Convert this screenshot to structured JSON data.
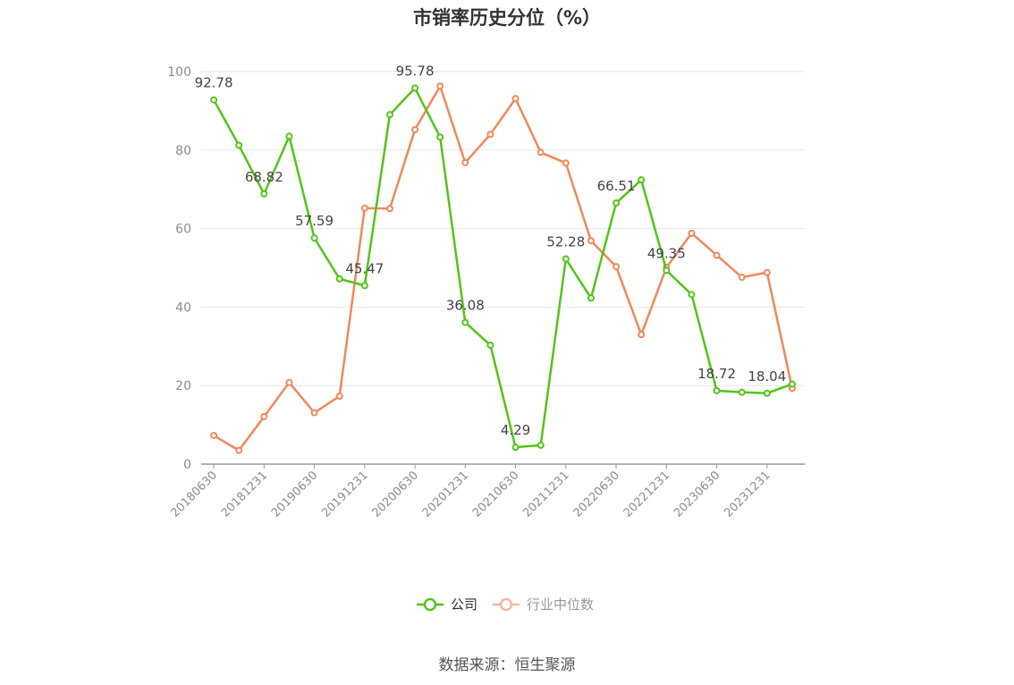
{
  "chart_data": {
    "type": "line",
    "title": "市销率历史分位（%）",
    "source": "数据来源：恒生聚源",
    "ylim": [
      0,
      100
    ],
    "yticks": [
      0,
      20,
      40,
      60,
      80,
      100
    ],
    "x": [
      "20180630",
      "20180930",
      "20181231",
      "20190331",
      "20190630",
      "20190930",
      "20191231",
      "20200331",
      "20200630",
      "20200930",
      "20201231",
      "20210331",
      "20210630",
      "20210930",
      "20211231",
      "20220331",
      "20220630",
      "20220930",
      "20221231",
      "20230331",
      "20230630",
      "20230930",
      "20231231",
      "20240331"
    ],
    "xtick_labels": [
      "20180630",
      "20181231",
      "20190630",
      "20191231",
      "20200630",
      "20201231",
      "20210630",
      "20211231",
      "20220630",
      "20221231",
      "20230630",
      "20231231"
    ],
    "grid": "horizontal",
    "legend_position": "bottom-center",
    "series": [
      {
        "name": "公司",
        "color": "#52c41a",
        "values": [
          92.78,
          81.2,
          68.82,
          83.5,
          57.59,
          47.2,
          45.47,
          89.0,
          95.78,
          83.3,
          36.08,
          30.3,
          4.29,
          4.8,
          52.28,
          42.3,
          66.51,
          72.4,
          49.35,
          43.2,
          18.72,
          18.3,
          18.04,
          20.4
        ],
        "labels": [
          {
            "index": 0,
            "text": "92.78"
          },
          {
            "index": 2,
            "text": "68.82"
          },
          {
            "index": 4,
            "text": "57.59"
          },
          {
            "index": 6,
            "text": "45.47"
          },
          {
            "index": 8,
            "text": "95.78"
          },
          {
            "index": 10,
            "text": "36.08"
          },
          {
            "index": 12,
            "text": "4.29"
          },
          {
            "index": 14,
            "text": "52.28"
          },
          {
            "index": 16,
            "text": "66.51"
          },
          {
            "index": 18,
            "text": "49.35"
          },
          {
            "index": 20,
            "text": "18.72"
          },
          {
            "index": 22,
            "text": "18.04"
          }
        ]
      },
      {
        "name": "行业中位数",
        "color": "#f0885a",
        "values": [
          7.3,
          3.5,
          12.1,
          20.8,
          13.1,
          17.3,
          65.2,
          65.1,
          85.2,
          96.3,
          76.8,
          84.0,
          93.1,
          79.4,
          76.7,
          56.9,
          50.3,
          33.0,
          50.1,
          58.8,
          53.2,
          47.6,
          48.8,
          19.3
        ]
      }
    ]
  }
}
